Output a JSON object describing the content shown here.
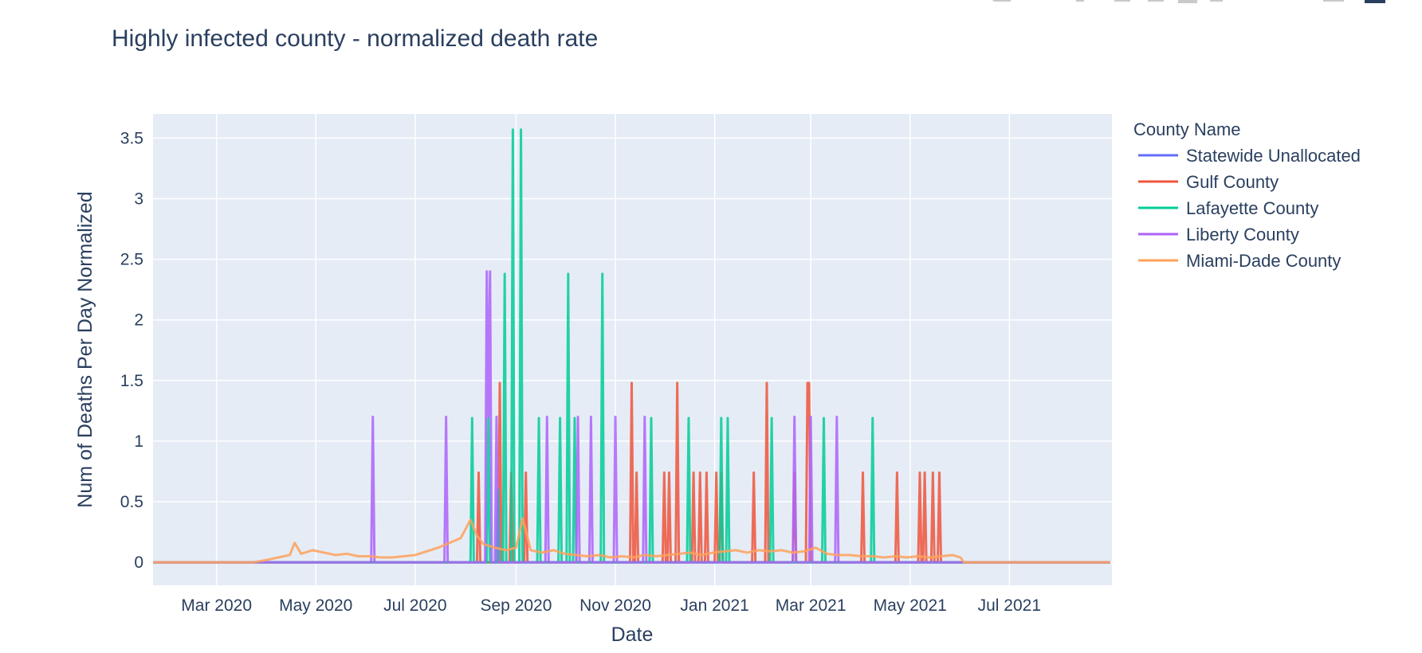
{
  "chart_data": {
    "type": "line",
    "title": "Highly infected county - normalized death rate",
    "xlabel": "Date",
    "ylabel": "Num of Deaths Per Day Normalized",
    "x_type": "date",
    "xlim": [
      "2020-01-22",
      "2021-09-02"
    ],
    "ylim": [
      -0.19,
      3.7
    ],
    "x_ticks": [
      {
        "date": "2020-03-01",
        "label": "Mar 2020"
      },
      {
        "date": "2020-05-01",
        "label": "May 2020"
      },
      {
        "date": "2020-07-01",
        "label": "Jul 2020"
      },
      {
        "date": "2020-09-01",
        "label": "Sep 2020"
      },
      {
        "date": "2020-11-01",
        "label": "Nov 2020"
      },
      {
        "date": "2021-01-01",
        "label": "Jan 2021"
      },
      {
        "date": "2021-03-01",
        "label": "Mar 2021"
      },
      {
        "date": "2021-05-01",
        "label": "May 2021"
      },
      {
        "date": "2021-07-01",
        "label": "Jul 2021"
      }
    ],
    "y_ticks": [
      {
        "value": 0,
        "label": "0"
      },
      {
        "value": 0.5,
        "label": "0.5"
      },
      {
        "value": 1,
        "label": "1"
      },
      {
        "value": 1.5,
        "label": "1.5"
      },
      {
        "value": 2,
        "label": "2"
      },
      {
        "value": 2.5,
        "label": "2.5"
      },
      {
        "value": 3,
        "label": "3"
      },
      {
        "value": 3.5,
        "label": "3.5"
      }
    ],
    "grid": true,
    "legend_title": "County Name",
    "legend_position": "right",
    "series": [
      {
        "name": "Statewide Unallocated",
        "color": "#636efa",
        "points": [
          [
            "2020-01-22",
            0
          ],
          [
            "2021-09-01",
            0
          ]
        ]
      },
      {
        "name": "Gulf County",
        "color": "#EF553B",
        "points": [
          [
            "2020-01-22",
            0
          ],
          [
            "2020-08-08",
            0
          ],
          [
            "2020-08-09",
            0.74
          ],
          [
            "2020-08-10",
            0
          ],
          [
            "2020-08-21",
            0
          ],
          [
            "2020-08-22",
            1.48
          ],
          [
            "2020-08-23",
            0
          ],
          [
            "2020-08-28",
            0
          ],
          [
            "2020-08-29",
            0.74
          ],
          [
            "2020-08-30",
            0
          ],
          [
            "2020-09-06",
            0
          ],
          [
            "2020-09-07",
            0.74
          ],
          [
            "2020-09-08",
            0
          ],
          [
            "2020-11-10",
            0
          ],
          [
            "2020-11-11",
            1.48
          ],
          [
            "2020-11-12",
            0
          ],
          [
            "2020-11-13",
            0
          ],
          [
            "2020-11-14",
            0.74
          ],
          [
            "2020-11-15",
            0
          ],
          [
            "2020-11-30",
            0
          ],
          [
            "2020-12-01",
            0.74
          ],
          [
            "2020-12-02",
            0
          ],
          [
            "2020-12-03",
            0
          ],
          [
            "2020-12-04",
            0.74
          ],
          [
            "2020-12-05",
            0
          ],
          [
            "2020-12-08",
            0
          ],
          [
            "2020-12-09",
            1.48
          ],
          [
            "2020-12-10",
            0
          ],
          [
            "2020-12-18",
            0
          ],
          [
            "2020-12-19",
            0.74
          ],
          [
            "2020-12-20",
            0
          ],
          [
            "2020-12-22",
            0
          ],
          [
            "2020-12-23",
            0.74
          ],
          [
            "2020-12-24",
            0
          ],
          [
            "2020-12-26",
            0
          ],
          [
            "2020-12-27",
            0.74
          ],
          [
            "2020-12-28",
            0
          ],
          [
            "2021-01-01",
            0
          ],
          [
            "2021-01-02",
            0.74
          ],
          [
            "2021-01-03",
            0
          ],
          [
            "2021-01-04",
            0
          ],
          [
            "2021-01-05",
            0.74
          ],
          [
            "2021-01-06",
            0
          ],
          [
            "2021-01-24",
            0
          ],
          [
            "2021-01-25",
            0.74
          ],
          [
            "2021-01-26",
            0
          ],
          [
            "2021-02-01",
            0
          ],
          [
            "2021-02-02",
            1.48
          ],
          [
            "2021-02-03",
            0
          ],
          [
            "2021-02-18",
            0
          ],
          [
            "2021-02-19",
            0.74
          ],
          [
            "2021-02-20",
            0
          ],
          [
            "2021-02-26",
            0
          ],
          [
            "2021-02-27",
            1.48
          ],
          [
            "2021-02-28",
            1.48
          ],
          [
            "2021-03-01",
            0
          ],
          [
            "2021-04-01",
            0
          ],
          [
            "2021-04-02",
            0.74
          ],
          [
            "2021-04-03",
            0
          ],
          [
            "2021-04-22",
            0
          ],
          [
            "2021-04-23",
            0.74
          ],
          [
            "2021-04-24",
            0
          ],
          [
            "2021-05-06",
            0
          ],
          [
            "2021-05-07",
            0.74
          ],
          [
            "2021-05-08",
            0
          ],
          [
            "2021-05-09",
            0
          ],
          [
            "2021-05-10",
            0.74
          ],
          [
            "2021-05-11",
            0
          ],
          [
            "2021-05-14",
            0
          ],
          [
            "2021-05-15",
            0.74
          ],
          [
            "2021-05-16",
            0
          ],
          [
            "2021-05-18",
            0
          ],
          [
            "2021-05-19",
            0.74
          ],
          [
            "2021-05-20",
            0
          ],
          [
            "2021-09-01",
            0
          ]
        ]
      },
      {
        "name": "Lafayette County",
        "color": "#00cc96",
        "points": [
          [
            "2020-01-22",
            0
          ],
          [
            "2020-08-04",
            0
          ],
          [
            "2020-08-05",
            1.19
          ],
          [
            "2020-08-06",
            0
          ],
          [
            "2020-08-14",
            0
          ],
          [
            "2020-08-15",
            1.19
          ],
          [
            "2020-08-16",
            0
          ],
          [
            "2020-08-20",
            0
          ],
          [
            "2020-08-21",
            0.6
          ],
          [
            "2020-08-22",
            0
          ],
          [
            "2020-08-24",
            0
          ],
          [
            "2020-08-25",
            2.38
          ],
          [
            "2020-08-26",
            0
          ],
          [
            "2020-08-29",
            0
          ],
          [
            "2020-08-30",
            3.57
          ],
          [
            "2020-08-31",
            0
          ],
          [
            "2020-09-03",
            0
          ],
          [
            "2020-09-04",
            3.57
          ],
          [
            "2020-09-05",
            0
          ],
          [
            "2020-09-14",
            0
          ],
          [
            "2020-09-15",
            1.19
          ],
          [
            "2020-09-16",
            0
          ],
          [
            "2020-09-27",
            0
          ],
          [
            "2020-09-28",
            1.19
          ],
          [
            "2020-09-29",
            0
          ],
          [
            "2020-10-02",
            0
          ],
          [
            "2020-10-03",
            2.38
          ],
          [
            "2020-10-04",
            0
          ],
          [
            "2020-10-06",
            0
          ],
          [
            "2020-10-07",
            1.19
          ],
          [
            "2020-10-08",
            0
          ],
          [
            "2020-10-23",
            0
          ],
          [
            "2020-10-24",
            2.38
          ],
          [
            "2020-10-25",
            0
          ],
          [
            "2020-11-22",
            0
          ],
          [
            "2020-11-23",
            1.19
          ],
          [
            "2020-11-24",
            0
          ],
          [
            "2020-12-15",
            0
          ],
          [
            "2020-12-16",
            1.19
          ],
          [
            "2020-12-17",
            0
          ],
          [
            "2021-01-04",
            0
          ],
          [
            "2021-01-05",
            1.19
          ],
          [
            "2021-01-06",
            0
          ],
          [
            "2021-01-08",
            0
          ],
          [
            "2021-01-09",
            1.19
          ],
          [
            "2021-01-10",
            0
          ],
          [
            "2021-02-04",
            0
          ],
          [
            "2021-02-05",
            1.19
          ],
          [
            "2021-02-06",
            0
          ],
          [
            "2021-03-08",
            0
          ],
          [
            "2021-03-09",
            1.19
          ],
          [
            "2021-03-10",
            0
          ],
          [
            "2021-04-07",
            0
          ],
          [
            "2021-04-08",
            1.19
          ],
          [
            "2021-04-09",
            0
          ],
          [
            "2021-09-01",
            0
          ]
        ]
      },
      {
        "name": "Liberty County",
        "color": "#ab63fa",
        "points": [
          [
            "2020-01-22",
            0
          ],
          [
            "2020-06-04",
            0
          ],
          [
            "2020-06-05",
            1.2
          ],
          [
            "2020-06-06",
            0
          ],
          [
            "2020-07-19",
            0
          ],
          [
            "2020-07-20",
            1.2
          ],
          [
            "2020-07-21",
            0
          ],
          [
            "2020-08-13",
            0
          ],
          [
            "2020-08-14",
            2.4
          ],
          [
            "2020-08-15",
            1.2
          ],
          [
            "2020-08-16",
            2.4
          ],
          [
            "2020-08-17",
            0
          ],
          [
            "2020-08-19",
            0
          ],
          [
            "2020-08-20",
            1.2
          ],
          [
            "2020-08-21",
            0
          ],
          [
            "2020-09-19",
            0
          ],
          [
            "2020-09-20",
            1.2
          ],
          [
            "2020-09-21",
            0
          ],
          [
            "2020-10-08",
            0
          ],
          [
            "2020-10-09",
            1.2
          ],
          [
            "2020-10-10",
            0
          ],
          [
            "2020-10-16",
            0
          ],
          [
            "2020-10-17",
            1.2
          ],
          [
            "2020-10-18",
            0
          ],
          [
            "2020-10-31",
            0
          ],
          [
            "2020-11-01",
            1.2
          ],
          [
            "2020-11-02",
            0
          ],
          [
            "2020-11-18",
            0
          ],
          [
            "2020-11-19",
            1.2
          ],
          [
            "2020-11-20",
            0
          ],
          [
            "2021-02-18",
            0
          ],
          [
            "2021-02-19",
            1.2
          ],
          [
            "2021-02-20",
            0
          ],
          [
            "2021-02-28",
            0
          ],
          [
            "2021-03-01",
            1.2
          ],
          [
            "2021-03-02",
            0
          ],
          [
            "2021-03-16",
            0
          ],
          [
            "2021-03-17",
            1.2
          ],
          [
            "2021-03-18",
            0
          ],
          [
            "2021-05-31",
            0
          ],
          [
            "2021-09-01",
            0
          ]
        ]
      },
      {
        "name": "Miami-Dade County",
        "color": "#FFA15A",
        "points": [
          [
            "2020-01-22",
            0
          ],
          [
            "2020-03-24",
            0
          ],
          [
            "2020-04-01",
            0.02
          ],
          [
            "2020-04-08",
            0.04
          ],
          [
            "2020-04-15",
            0.06
          ],
          [
            "2020-04-18",
            0.16
          ],
          [
            "2020-04-22",
            0.07
          ],
          [
            "2020-04-29",
            0.1
          ],
          [
            "2020-05-06",
            0.08
          ],
          [
            "2020-05-13",
            0.06
          ],
          [
            "2020-05-20",
            0.07
          ],
          [
            "2020-05-27",
            0.05
          ],
          [
            "2020-06-03",
            0.05
          ],
          [
            "2020-06-10",
            0.04
          ],
          [
            "2020-06-17",
            0.04
          ],
          [
            "2020-06-24",
            0.05
          ],
          [
            "2020-07-01",
            0.06
          ],
          [
            "2020-07-08",
            0.09
          ],
          [
            "2020-07-15",
            0.12
          ],
          [
            "2020-07-22",
            0.16
          ],
          [
            "2020-07-29",
            0.2
          ],
          [
            "2020-08-04",
            0.35
          ],
          [
            "2020-08-08",
            0.22
          ],
          [
            "2020-08-12",
            0.15
          ],
          [
            "2020-08-19",
            0.12
          ],
          [
            "2020-08-26",
            0.1
          ],
          [
            "2020-09-01",
            0.12
          ],
          [
            "2020-09-05",
            0.36
          ],
          [
            "2020-09-10",
            0.1
          ],
          [
            "2020-09-17",
            0.08
          ],
          [
            "2020-09-24",
            0.1
          ],
          [
            "2020-10-01",
            0.07
          ],
          [
            "2020-10-08",
            0.06
          ],
          [
            "2020-10-15",
            0.05
          ],
          [
            "2020-10-22",
            0.06
          ],
          [
            "2020-10-29",
            0.04
          ],
          [
            "2020-11-05",
            0.05
          ],
          [
            "2020-11-12",
            0.04
          ],
          [
            "2020-11-19",
            0.06
          ],
          [
            "2020-11-26",
            0.05
          ],
          [
            "2020-12-03",
            0.06
          ],
          [
            "2020-12-10",
            0.07
          ],
          [
            "2020-12-17",
            0.08
          ],
          [
            "2020-12-24",
            0.06
          ],
          [
            "2020-12-31",
            0.08
          ],
          [
            "2021-01-07",
            0.09
          ],
          [
            "2021-01-14",
            0.1
          ],
          [
            "2021-01-21",
            0.08
          ],
          [
            "2021-01-28",
            0.1
          ],
          [
            "2021-02-04",
            0.09
          ],
          [
            "2021-02-11",
            0.1
          ],
          [
            "2021-02-18",
            0.08
          ],
          [
            "2021-02-25",
            0.09
          ],
          [
            "2021-03-04",
            0.12
          ],
          [
            "2021-03-11",
            0.07
          ],
          [
            "2021-03-18",
            0.06
          ],
          [
            "2021-03-25",
            0.06
          ],
          [
            "2021-04-01",
            0.05
          ],
          [
            "2021-04-08",
            0.05
          ],
          [
            "2021-04-15",
            0.04
          ],
          [
            "2021-04-22",
            0.05
          ],
          [
            "2021-04-29",
            0.04
          ],
          [
            "2021-05-06",
            0.05
          ],
          [
            "2021-05-13",
            0.04
          ],
          [
            "2021-05-20",
            0.05
          ],
          [
            "2021-05-27",
            0.06
          ],
          [
            "2021-06-01",
            0.04
          ],
          [
            "2021-06-03",
            0
          ],
          [
            "2021-09-01",
            0
          ]
        ]
      }
    ]
  },
  "modebar": {
    "icons": [
      "camera-icon",
      "zoom-icon",
      "pan-icon",
      "select-box-icon",
      "lasso-icon",
      "zoom-in-icon",
      "zoom-out-icon",
      "autoscale-icon",
      "reset-axes-icon",
      "spike-lines-icon",
      "compare-icon",
      "plotly-logo-icon"
    ]
  }
}
